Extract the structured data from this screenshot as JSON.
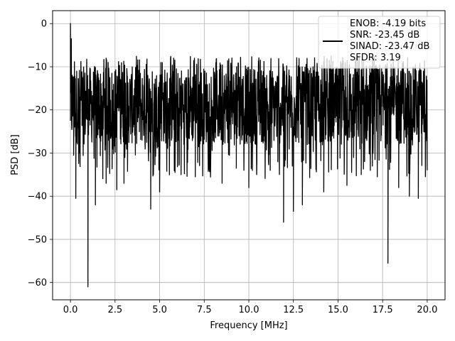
{
  "chart_data": {
    "type": "line",
    "title": "",
    "xlabel": "Frequency [MHz]",
    "ylabel": "PSD [dB]",
    "xlim": [
      -1.0,
      21.0
    ],
    "ylim": [
      -64.0,
      3.0
    ],
    "xticks": [
      0.0,
      2.5,
      5.0,
      7.5,
      10.0,
      12.5,
      15.0,
      17.5,
      20.0
    ],
    "xtick_labels": [
      "0.0",
      "2.5",
      "5.0",
      "7.5",
      "10.0",
      "12.5",
      "15.0",
      "17.5",
      "20.0"
    ],
    "yticks": [
      0,
      -10,
      -20,
      -30,
      -40,
      -50,
      -60
    ],
    "ytick_labels": [
      "0",
      "−10",
      "−20",
      "−30",
      "−40",
      "−50",
      "−60"
    ],
    "grid": true,
    "legend_position": "top-right",
    "series": [
      {
        "name": "ENOB: -4.19 bits\nSNR: -23.45 dB\nSINAD: -23.47 dB\nSFDR: 3.19",
        "color": "#000000",
        "noise_band_db": [
          -28.0,
          -10.0
        ],
        "x": [
          0.0,
          0.05,
          0.1,
          0.18,
          0.3,
          0.5,
          0.98,
          1.4,
          2.0,
          2.6,
          3.0,
          4.5,
          5.0,
          6.2,
          7.0,
          8.5,
          9.3,
          10.0,
          11.2,
          11.95,
          12.5,
          13.0,
          14.2,
          15.5,
          16.3,
          17.2,
          17.8,
          18.4,
          19.0,
          19.5,
          20.0
        ],
        "y": [
          0.0,
          -3.5,
          -12.0,
          -30.5,
          -40.5,
          -30.0,
          -61.0,
          -42.0,
          -37.0,
          -38.5,
          -37.0,
          -43.0,
          -39.0,
          -35.0,
          -35.5,
          -37.0,
          -33.5,
          -38.0,
          -34.0,
          -46.0,
          -43.5,
          -42.0,
          -39.0,
          -37.5,
          -35.0,
          -35.5,
          -55.5,
          -38.0,
          -40.0,
          -40.5,
          -34.0
        ]
      }
    ]
  },
  "colors": {
    "line": "#000000",
    "grid": "#b0b0b0",
    "axes": "#000000",
    "background": "#ffffff"
  }
}
